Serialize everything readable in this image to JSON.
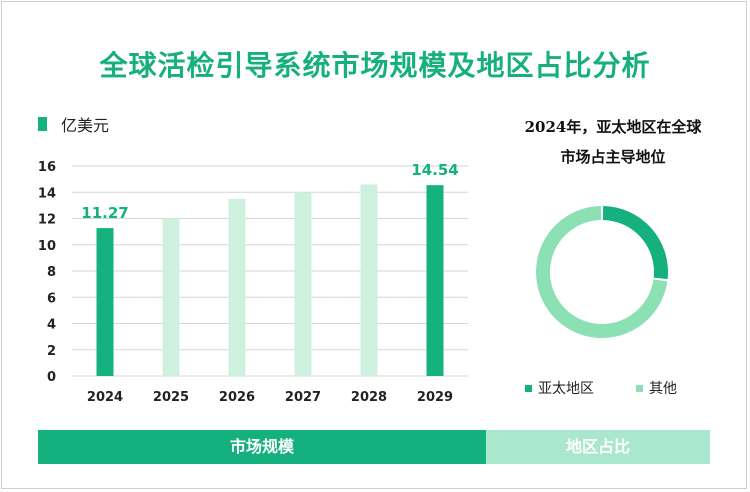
{
  "title": "全球活检引导系统市场规模及地区占比分析",
  "unit_legend": "亿美元",
  "colors": {
    "bar_dark": "#15b17e",
    "bar_light": "#cdf0df",
    "donut_main": "#16b07e",
    "donut_other": "#8be0b4",
    "grid": "#d6d6d6",
    "title": "#16b07e"
  },
  "chart_data": [
    {
      "type": "bar",
      "categories": [
        "2024",
        "2025",
        "2026",
        "2027",
        "2028",
        "2029"
      ],
      "values": [
        11.27,
        12.0,
        13.5,
        14.0,
        14.6,
        14.54
      ],
      "highlighted": [
        true,
        false,
        false,
        false,
        false,
        true
      ],
      "data_labels": [
        "11.27",
        "",
        "",
        "",
        "",
        "14.54"
      ],
      "ylim": [
        0,
        16
      ],
      "yticks": [
        "0",
        "2",
        "4",
        "6",
        "8",
        "10",
        "12",
        "14",
        "16"
      ],
      "ylabel": "亿美元",
      "grid": true
    },
    {
      "type": "pie",
      "title_lines": [
        "2024年，亚太地区在全球",
        "市场占主导地位"
      ],
      "categories": [
        "亚太地区",
        "其他"
      ],
      "values": [
        27,
        73
      ],
      "legend_position": "bottom"
    }
  ],
  "tabs": [
    {
      "label": "市场规模",
      "active": true
    },
    {
      "label": "地区占比",
      "active": false
    }
  ]
}
